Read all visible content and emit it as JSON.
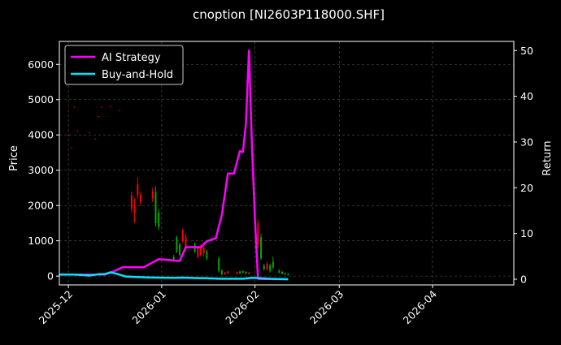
{
  "chart_data": {
    "type": "line",
    "title": "cnoption [NI2603P118000.SHF]",
    "ylabel": "Price",
    "y2label": "Return",
    "x_range": [
      "2025-11-28",
      "2026-04-28"
    ],
    "ylim": [
      -250,
      6650
    ],
    "y2lim": [
      -1.25,
      52
    ],
    "x_ticks": [
      "2025-12",
      "2026-01",
      "2026-02",
      "2026-03",
      "2026-04"
    ],
    "y_ticks": [
      0,
      1000,
      2000,
      3000,
      4000,
      5000,
      6000
    ],
    "y2_ticks": [
      0,
      10,
      20,
      30,
      40,
      50
    ],
    "grid": true,
    "legend_position": "top-left",
    "series": [
      {
        "name": "AI Strategy",
        "color": "#ff00ff",
        "x": [
          "2025-11-28",
          "2025-12-05",
          "2025-12-10",
          "2025-12-13",
          "2025-12-16",
          "2025-12-19",
          "2025-12-23",
          "2025-12-26",
          "2025-12-31",
          "2026-01-05",
          "2026-01-07",
          "2026-01-09",
          "2026-01-12",
          "2026-01-14",
          "2026-01-16",
          "2026-01-19",
          "2026-01-21",
          "2026-01-23",
          "2026-01-25",
          "2026-01-27",
          "2026-01-28",
          "2026-01-29",
          "2026-01-30",
          "2026-01-31",
          "2026-02-01",
          "2026-02-02",
          "2026-02-03",
          "2026-02-05",
          "2026-02-08",
          "2026-02-12"
        ],
        "values": [
          1,
          1,
          1,
          1,
          1.7,
          2.6,
          2.6,
          2.6,
          4.4,
          4.1,
          4.0,
          7.0,
          7.0,
          7.0,
          8.3,
          9.0,
          14.1,
          23.1,
          23.1,
          28.0,
          27.8,
          34.0,
          50.0,
          29.0,
          13.0,
          0.1,
          0.05,
          0.05,
          0.05,
          0
        ]
      },
      {
        "name": "Buy-and-Hold",
        "color": "#00e5ff",
        "x": [
          "2025-11-28",
          "2025-12-03",
          "2025-12-08",
          "2025-12-11",
          "2025-12-13",
          "2025-12-15",
          "2025-12-17",
          "2025-12-20",
          "2025-12-23",
          "2025-12-27",
          "2025-12-31",
          "2026-01-05",
          "2026-01-08",
          "2026-01-12",
          "2026-01-16",
          "2026-01-20",
          "2026-01-24",
          "2026-01-28",
          "2026-01-31",
          "2026-02-03",
          "2026-02-06",
          "2026-02-09",
          "2026-02-12"
        ],
        "values": [
          1.0,
          1.0,
          0.8,
          1.1,
          1.1,
          1.5,
          1.2,
          0.6,
          0.5,
          0.4,
          0.35,
          0.3,
          0.35,
          0.25,
          0.2,
          0.1,
          0.1,
          0.1,
          0.3,
          0.2,
          0.1,
          0.05,
          0.0
        ]
      }
    ],
    "candles": [
      {
        "date": "2025-12-01",
        "open": 4000,
        "close": 4000,
        "high": 4000,
        "low": 4000,
        "color": "#ff0000"
      },
      {
        "date": "2025-12-02",
        "open": 3650,
        "close": 3650,
        "high": 3650,
        "low": 3650,
        "color": "#ff0000"
      },
      {
        "date": "2025-12-03",
        "open": 4800,
        "close": 4800,
        "high": 4800,
        "low": 4800,
        "color": "#ff0000"
      },
      {
        "date": "2025-12-04",
        "open": 4130,
        "close": 4130,
        "high": 4130,
        "low": 4130,
        "color": "#ff0000"
      },
      {
        "date": "2025-12-08",
        "open": 4070,
        "close": 4070,
        "high": 4070,
        "low": 4070,
        "color": "#ff0000"
      },
      {
        "date": "2025-12-10",
        "open": 3900,
        "close": 3900,
        "high": 3900,
        "low": 3900,
        "color": "#ff0000"
      },
      {
        "date": "2025-12-11",
        "open": 4530,
        "close": 4530,
        "high": 4530,
        "low": 4530,
        "color": "#ff0000"
      },
      {
        "date": "2025-12-12",
        "open": 4800,
        "close": 4800,
        "high": 4800,
        "low": 4800,
        "color": "#ff0000"
      },
      {
        "date": "2025-12-15",
        "open": 4820,
        "close": 4820,
        "high": 4820,
        "low": 4820,
        "color": "#ff0000"
      },
      {
        "date": "2025-12-18",
        "open": 4700,
        "close": 4700,
        "high": 4700,
        "low": 4700,
        "color": "#ff0000"
      },
      {
        "date": "2025-12-22",
        "open": 1900,
        "close": 2300,
        "high": 2400,
        "low": 1800,
        "color": "#ff0000"
      },
      {
        "date": "2025-12-23",
        "open": 1800,
        "close": 2000,
        "high": 2200,
        "low": 1500,
        "color": "#ff0000"
      },
      {
        "date": "2025-12-24",
        "open": 2300,
        "close": 2600,
        "high": 2800,
        "low": 2200,
        "color": "#ff0000"
      },
      {
        "date": "2025-12-25",
        "open": 2100,
        "close": 2300,
        "high": 2400,
        "low": 2000,
        "color": "#ff0000"
      },
      {
        "date": "2025-12-29",
        "open": 2200,
        "close": 2400,
        "high": 2500,
        "low": 2100,
        "color": "#ff0000"
      },
      {
        "date": "2025-12-30",
        "open": 2400,
        "close": 1500,
        "high": 2550,
        "low": 1400,
        "color": "#00aa00"
      },
      {
        "date": "2025-12-31",
        "open": 1800,
        "close": 1400,
        "high": 1900,
        "low": 1300,
        "color": "#00aa00"
      },
      {
        "date": "2026-01-05",
        "open": 550,
        "close": 450,
        "high": 600,
        "low": 400,
        "color": "#00aa00"
      },
      {
        "date": "2026-01-06",
        "open": 1100,
        "close": 700,
        "high": 1150,
        "low": 650,
        "color": "#00aa00"
      },
      {
        "date": "2026-01-07",
        "open": 900,
        "close": 600,
        "high": 950,
        "low": 550,
        "color": "#00aa00"
      },
      {
        "date": "2026-01-08",
        "open": 1000,
        "close": 1300,
        "high": 1350,
        "low": 950,
        "color": "#ff0000"
      },
      {
        "date": "2026-01-09",
        "open": 800,
        "close": 1100,
        "high": 1200,
        "low": 750,
        "color": "#ff0000"
      },
      {
        "date": "2026-01-12",
        "open": 900,
        "close": 700,
        "high": 950,
        "low": 650,
        "color": "#00aa00"
      },
      {
        "date": "2026-01-13",
        "open": 550,
        "close": 800,
        "high": 850,
        "low": 500,
        "color": "#ff0000"
      },
      {
        "date": "2026-01-14",
        "open": 600,
        "close": 850,
        "high": 900,
        "low": 550,
        "color": "#ff0000"
      },
      {
        "date": "2026-01-15",
        "open": 650,
        "close": 800,
        "high": 850,
        "low": 550,
        "color": "#ff0000"
      },
      {
        "date": "2026-01-16",
        "open": 700,
        "close": 500,
        "high": 750,
        "low": 450,
        "color": "#00aa00"
      },
      {
        "date": "2026-01-20",
        "open": 500,
        "close": 150,
        "high": 550,
        "low": 100,
        "color": "#00aa00"
      },
      {
        "date": "2026-01-21",
        "open": 150,
        "close": 50,
        "high": 200,
        "low": 30,
        "color": "#00aa00"
      },
      {
        "date": "2026-01-22",
        "open": 60,
        "close": 100,
        "high": 120,
        "low": 40,
        "color": "#ff0000"
      },
      {
        "date": "2026-01-23",
        "open": 80,
        "close": 130,
        "high": 150,
        "low": 60,
        "color": "#ff0000"
      },
      {
        "date": "2026-01-26",
        "open": 60,
        "close": 110,
        "high": 130,
        "low": 50,
        "color": "#ff0000"
      },
      {
        "date": "2026-01-27",
        "open": 130,
        "close": 80,
        "high": 150,
        "low": 60,
        "color": "#00aa00"
      },
      {
        "date": "2026-01-28",
        "open": 140,
        "close": 100,
        "high": 150,
        "low": 80,
        "color": "#00aa00"
      },
      {
        "date": "2026-01-29",
        "open": 120,
        "close": 70,
        "high": 140,
        "low": 50,
        "color": "#00aa00"
      },
      {
        "date": "2026-01-30",
        "open": 60,
        "close": 100,
        "high": 120,
        "low": 40,
        "color": "#ff0000"
      },
      {
        "date": "2026-02-02",
        "open": 900,
        "close": 1500,
        "high": 1600,
        "low": 800,
        "color": "#ff0000"
      },
      {
        "date": "2026-02-03",
        "open": 1100,
        "close": 500,
        "high": 1200,
        "low": 450,
        "color": "#00aa00"
      },
      {
        "date": "2026-02-04",
        "open": 300,
        "close": 200,
        "high": 350,
        "low": 150,
        "color": "#00aa00"
      },
      {
        "date": "2026-02-05",
        "open": 200,
        "close": 350,
        "high": 400,
        "low": 150,
        "color": "#ff0000"
      },
      {
        "date": "2026-02-06",
        "open": 300,
        "close": 150,
        "high": 350,
        "low": 100,
        "color": "#00aa00"
      },
      {
        "date": "2026-02-07",
        "open": 400,
        "close": 250,
        "high": 550,
        "low": 200,
        "color": "#00aa00"
      },
      {
        "date": "2026-02-09",
        "open": 150,
        "close": 100,
        "high": 200,
        "low": 80,
        "color": "#00aa00"
      },
      {
        "date": "2026-02-10",
        "open": 120,
        "close": 60,
        "high": 150,
        "low": 50,
        "color": "#00aa00"
      },
      {
        "date": "2026-02-11",
        "open": 80,
        "close": 40,
        "high": 100,
        "low": 30,
        "color": "#00aa00"
      },
      {
        "date": "2026-02-12",
        "open": 60,
        "close": 30,
        "high": 80,
        "low": 20,
        "color": "#00aa00"
      }
    ]
  }
}
